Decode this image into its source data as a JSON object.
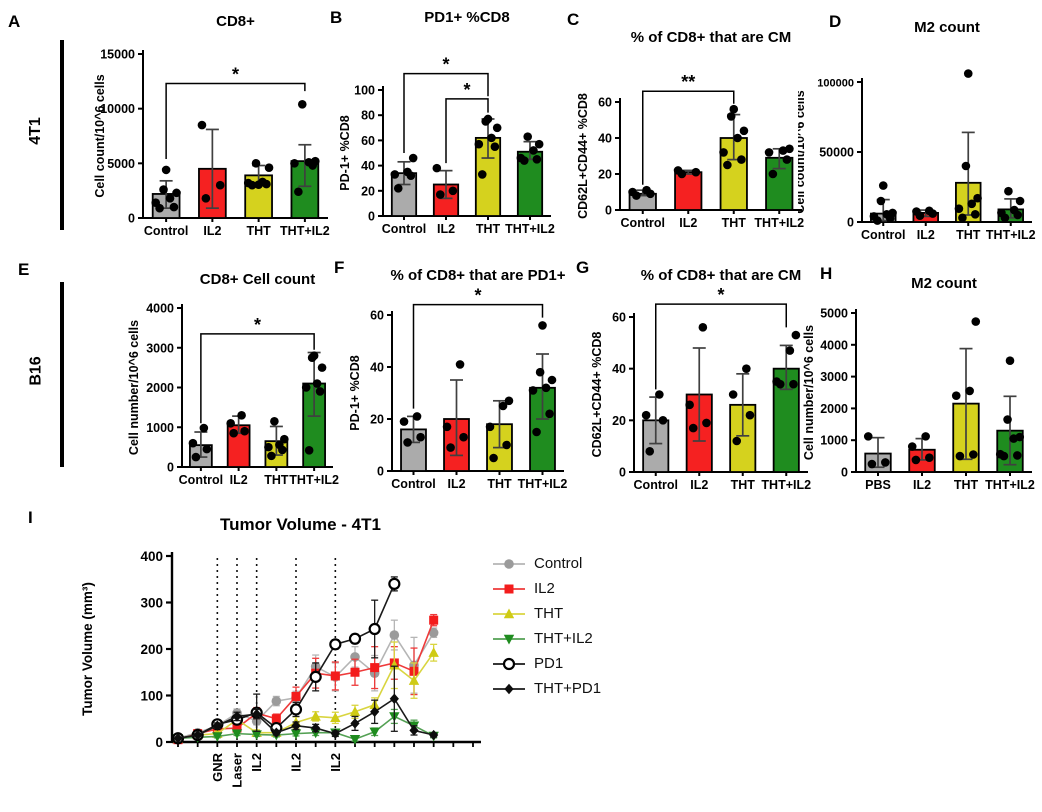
{
  "figure": {
    "row_labels": [
      {
        "label": "4T1"
      },
      {
        "label": "B16"
      }
    ],
    "colors": {
      "control": "#ABABAB",
      "il2": "#F52121",
      "tht": "#D5D21E",
      "tht_il2": "#1F8C1F",
      "error_bar": "#404040",
      "point": "#000000"
    }
  },
  "chart_data": [
    {
      "panel_label": "A",
      "type": "bar",
      "title": "CD8+",
      "ylabel": "Cell count/10^6 cells",
      "ylim": [
        0,
        15000
      ],
      "yticks": [
        0,
        5000,
        10000,
        15000
      ],
      "categories": [
        "Control",
        "IL2",
        "THT",
        "THT+IL2"
      ],
      "bar_colors": [
        "#ABABAB",
        "#F52121",
        "#D5D21E",
        "#1F8C1F"
      ],
      "values": [
        2200,
        4500,
        3900,
        5200
      ],
      "err_low": [
        900,
        900,
        3000,
        2900
      ],
      "err_high": [
        3400,
        8100,
        4800,
        6700
      ],
      "points": [
        [
          900,
          1000,
          1400,
          1800,
          2300,
          2600,
          4400
        ],
        [
          1800,
          3000,
          8500
        ],
        [
          3000,
          3100,
          3200,
          3300,
          4600,
          5000,
          3050
        ],
        [
          2400,
          4800,
          5000,
          5100,
          5200,
          10400
        ]
      ],
      "significance": [
        {
          "from": 0,
          "to": 3,
          "label": "*",
          "y": 12300,
          "drops": [
            5400,
            11600
          ]
        }
      ]
    },
    {
      "panel_label": "B",
      "type": "bar",
      "title": "PD1+ %CD8",
      "ylabel": "PD-1+ %CD8",
      "ylim": [
        0,
        100
      ],
      "yticks": [
        0,
        20,
        40,
        60,
        80,
        100
      ],
      "categories": [
        "Control",
        "IL2",
        "THT",
        "THT+IL2"
      ],
      "bar_colors": [
        "#ABABAB",
        "#F52121",
        "#D5D21E",
        "#1F8C1F"
      ],
      "values": [
        34,
        25,
        62,
        51
      ],
      "err_low": [
        25,
        14,
        46,
        45
      ],
      "err_high": [
        43,
        36,
        77,
        59
      ],
      "points": [
        [
          22,
          32,
          33,
          35,
          46
        ],
        [
          17,
          20,
          38
        ],
        [
          33,
          55,
          57,
          62,
          70,
          75,
          77
        ],
        [
          44,
          45,
          46,
          52,
          57,
          63
        ]
      ],
      "significance": [
        {
          "from": 0,
          "to": 2,
          "label": "*",
          "y": 113,
          "drops": [
            50,
            95
          ]
        },
        {
          "from": 1,
          "to": 2,
          "label": "*",
          "y": 93,
          "drops": [
            42,
            82
          ]
        }
      ]
    },
    {
      "panel_label": "C",
      "type": "bar",
      "title": "% of CD8+ that are CM",
      "ylabel": "CD62L+CD44+ %CD8",
      "ylim": [
        0,
        60
      ],
      "yticks": [
        0,
        20,
        40,
        60
      ],
      "categories": [
        "Control",
        "IL2",
        "THT",
        "THT+IL2"
      ],
      "bar_colors": [
        "#ABABAB",
        "#F52121",
        "#D5D21E",
        "#1F8C1F"
      ],
      "values": [
        9,
        21,
        40,
        29
      ],
      "err_low": [
        8,
        20,
        28,
        23
      ],
      "err_high": [
        11,
        22,
        53,
        34
      ],
      "points": [
        [
          8,
          9,
          10,
          11
        ],
        [
          20,
          21,
          22
        ],
        [
          25,
          28,
          32,
          40,
          44,
          52,
          56
        ],
        [
          20,
          28,
          32,
          33,
          34
        ]
      ],
      "significance": [
        {
          "from": 0,
          "to": 2,
          "label": "**",
          "y": 66,
          "drops": [
            14,
            59
          ]
        }
      ]
    },
    {
      "panel_label": "D",
      "type": "bar",
      "title": "M2 count",
      "ylabel": "Cell count/10^6 cells",
      "ylim": [
        0,
        100000
      ],
      "yticks": [
        0,
        50000,
        100000
      ],
      "categories": [
        "Control",
        "IL2",
        "THT",
        "THT+IL2"
      ],
      "bar_colors": [
        "#ABABAB",
        "#F52121",
        "#D5D21E",
        "#1F8C1F"
      ],
      "values": [
        6000,
        6500,
        28000,
        9000
      ],
      "err_low": [
        1000,
        4000,
        5000,
        3000
      ],
      "err_high": [
        16000,
        8500,
        64000,
        16500
      ],
      "points": [
        [
          1000,
          2500,
          4000,
          5500,
          6500,
          15000,
          26000
        ],
        [
          4500,
          6000,
          7500,
          8000
        ],
        [
          3000,
          5500,
          9500,
          13000,
          17000,
          40000,
          106000
        ],
        [
          3000,
          5000,
          6500,
          8500,
          15000,
          22000
        ]
      ],
      "significance": []
    },
    {
      "panel_label": "E",
      "type": "bar",
      "title": "CD8+ Cell count",
      "ylabel": "Cell number/10^6 cells",
      "ylim": [
        0,
        4000
      ],
      "yticks": [
        0,
        1000,
        2000,
        3000,
        4000
      ],
      "categories": [
        "Control",
        "IL2",
        "THT",
        "THT+IL2"
      ],
      "bar_colors": [
        "#ABABAB",
        "#F52121",
        "#D5D21E",
        "#1F8C1F"
      ],
      "values": [
        550,
        1050,
        650,
        2100
      ],
      "err_low": [
        250,
        850,
        300,
        1280
      ],
      "err_high": [
        880,
        1280,
        1020,
        2880
      ],
      "points": [
        [
          250,
          450,
          600,
          980
        ],
        [
          850,
          900,
          1100,
          1300
        ],
        [
          280,
          430,
          500,
          560,
          700,
          1150
        ],
        [
          420,
          1900,
          2000,
          2100,
          2500,
          2750,
          2800
        ]
      ],
      "significance": [
        {
          "from": 0,
          "to": 3,
          "label": "*",
          "y": 3350,
          "drops": [
            1100,
            2950
          ]
        }
      ]
    },
    {
      "panel_label": "F",
      "type": "bar",
      "title": "% of CD8+ that are PD1+",
      "ylabel": "PD-1+ %CD8",
      "ylim": [
        0,
        60
      ],
      "yticks": [
        0,
        20,
        40,
        60
      ],
      "categories": [
        "Control",
        "IL2",
        "THT",
        "THT+IL2"
      ],
      "bar_colors": [
        "#ABABAB",
        "#F52121",
        "#D5D21E",
        "#1F8C1F"
      ],
      "values": [
        16,
        20,
        18,
        32
      ],
      "err_low": [
        11,
        6,
        9,
        20
      ],
      "err_high": [
        21,
        35,
        27,
        45
      ],
      "points": [
        [
          11,
          13,
          19,
          21
        ],
        [
          9,
          13,
          17,
          41
        ],
        [
          5,
          10,
          17,
          25,
          27
        ],
        [
          15,
          22,
          31,
          32,
          35,
          38,
          56
        ]
      ],
      "significance": [
        {
          "from": 0,
          "to": 3,
          "label": "*",
          "y": 64,
          "drops": [
            24,
            59
          ]
        }
      ]
    },
    {
      "panel_label": "G",
      "type": "bar",
      "title": "% of CD8+ that are CM",
      "ylabel": "CD62L+CD44+ %CD8",
      "ylim": [
        0,
        60
      ],
      "yticks": [
        0,
        20,
        40,
        60
      ],
      "categories": [
        "Control",
        "IL2",
        "THT",
        "THT+IL2"
      ],
      "bar_colors": [
        "#ABABAB",
        "#F52121",
        "#D5D21E",
        "#1F8C1F"
      ],
      "values": [
        20,
        30,
        26,
        40
      ],
      "err_low": [
        11,
        12,
        14,
        32
      ],
      "err_high": [
        29,
        48,
        38,
        49
      ],
      "points": [
        [
          8,
          20,
          22,
          30
        ],
        [
          17,
          19,
          26,
          56
        ],
        [
          12,
          22,
          30,
          40
        ],
        [
          34,
          34,
          35,
          47,
          53
        ]
      ],
      "significance": [
        {
          "from": 0,
          "to": 3,
          "label": "*",
          "y": 65,
          "drops": [
            32,
            56
          ]
        }
      ]
    },
    {
      "panel_label": "H",
      "type": "bar",
      "title": "M2 count",
      "ylabel": "Cell number/10^6 cells",
      "ylim": [
        0,
        5000
      ],
      "yticks": [
        0,
        1000,
        2000,
        3000,
        4000,
        5000
      ],
      "categories": [
        "PBS",
        "IL2",
        "THT",
        "THT+IL2"
      ],
      "bar_colors": [
        "#ABABAB",
        "#F52121",
        "#D5D21E",
        "#1F8C1F"
      ],
      "values": [
        580,
        700,
        2150,
        1300
      ],
      "err_low": [
        150,
        380,
        400,
        230
      ],
      "err_high": [
        1080,
        1050,
        3880,
        2380
      ],
      "points": [
        [
          250,
          300,
          1120
        ],
        [
          380,
          450,
          800,
          1120
        ],
        [
          500,
          550,
          2400,
          2550,
          4730
        ],
        [
          500,
          520,
          560,
          1050,
          1100,
          1650,
          3500
        ]
      ],
      "significance": []
    },
    {
      "panel_label": "I",
      "type": "line",
      "title": "Tumor Volume - 4T1",
      "ylabel": "Tumor Volume (mm³)",
      "ylim": [
        0,
        400
      ],
      "yticks": [
        0,
        100,
        200,
        300,
        400
      ],
      "n_timepoints": 14,
      "x_tick_count": 16,
      "events": [
        {
          "x": 2,
          "label": "GNR"
        },
        {
          "x": 3,
          "label": "Laser"
        },
        {
          "x": 4,
          "label": "IL2"
        },
        {
          "x": 6,
          "label": "IL2"
        },
        {
          "x": 8,
          "label": "IL2"
        }
      ],
      "legend_position": "right",
      "series": [
        {
          "name": "Control",
          "marker": "circle",
          "line_color": "#b5b5b5",
          "fill": "#9b9b9b",
          "values": [
            8,
            20,
            35,
            62,
            45,
            88,
            95,
            162,
            140,
            183,
            148,
            230,
            165,
            235
          ],
          "err": [
            3,
            4,
            6,
            9,
            8,
            10,
            14,
            25,
            30,
            22,
            38,
            32,
            60,
            10
          ]
        },
        {
          "name": "IL2",
          "marker": "square",
          "line_color": "#ee3a3a",
          "fill": "#f31c1c",
          "values": [
            5,
            18,
            28,
            30,
            62,
            50,
            98,
            148,
            142,
            150,
            160,
            170,
            152,
            262
          ],
          "err": [
            2,
            4,
            6,
            8,
            12,
            10,
            20,
            32,
            30,
            28,
            45,
            35,
            50,
            12
          ]
        },
        {
          "name": "THT",
          "marker": "triangle-up",
          "line_color": "#d9d540",
          "fill": "#cfcb15",
          "values": [
            8,
            15,
            18,
            48,
            20,
            20,
            42,
            55,
            52,
            65,
            80,
            165,
            132,
            192
          ],
          "err": [
            2,
            3,
            5,
            8,
            6,
            6,
            12,
            10,
            12,
            14,
            15,
            50,
            38,
            18
          ]
        },
        {
          "name": "THT+IL2",
          "marker": "triangle-down",
          "line_color": "#53a053",
          "fill": "#1f8c1f",
          "values": [
            8,
            10,
            12,
            18,
            16,
            15,
            18,
            20,
            20,
            6,
            22,
            55,
            35,
            13
          ],
          "err": [
            2,
            2,
            3,
            4,
            4,
            4,
            5,
            6,
            6,
            4,
            8,
            15,
            12,
            4
          ]
        },
        {
          "name": "PD1",
          "marker": "circle-open",
          "line_color": "#1a1a1a",
          "fill": "#ffffff",
          "values": [
            8,
            15,
            38,
            48,
            63,
            30,
            70,
            140,
            210,
            222,
            243,
            340
          ],
          "err": [
            2,
            3,
            5,
            8,
            40,
            10,
            15,
            30,
            10,
            10,
            62,
            15
          ]
        },
        {
          "name": "THT+PD1",
          "marker": "diamond",
          "line_color": "#1a1a1a",
          "fill": "#0d0d0d",
          "values": [
            8,
            15,
            35,
            55,
            60,
            20,
            35,
            30,
            18,
            40,
            65,
            93,
            25,
            15
          ],
          "err": [
            2,
            3,
            6,
            9,
            10,
            5,
            8,
            8,
            6,
            15,
            25,
            70,
            10,
            4
          ]
        }
      ]
    }
  ]
}
